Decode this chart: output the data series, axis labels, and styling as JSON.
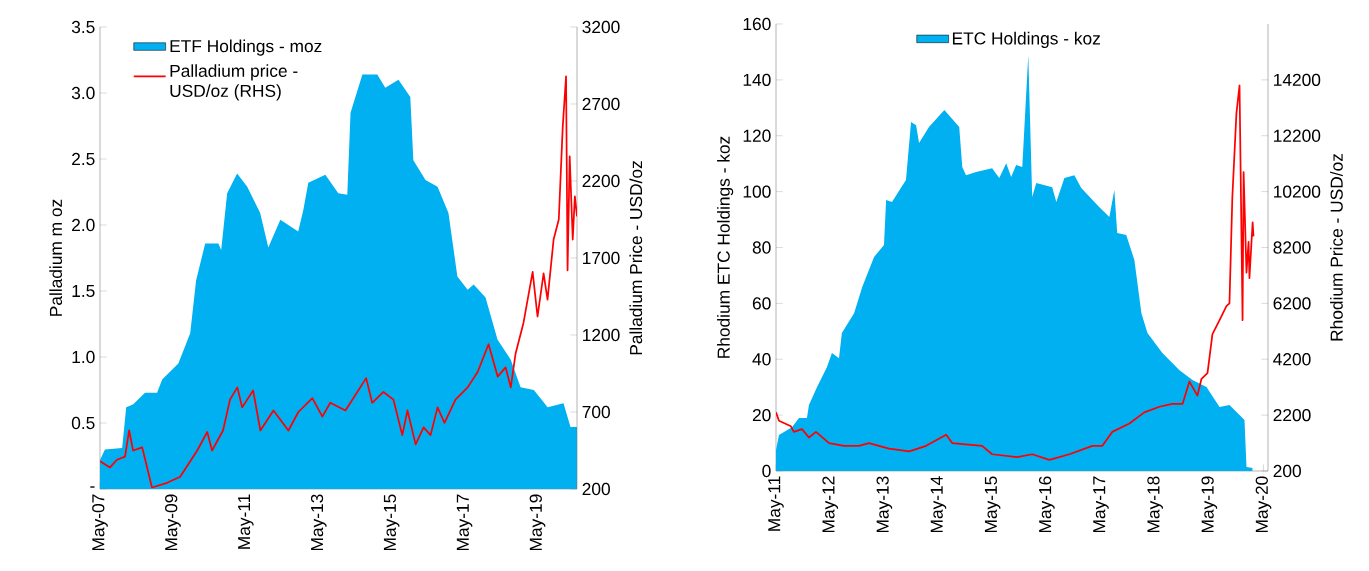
{
  "chart_data": [
    {
      "type": "area",
      "ylabel": "Palladium m oz",
      "y2label": "Palladium Price - USD/oz",
      "xlim": [
        "2007-05",
        "2020-06"
      ],
      "xticks": [
        {
          "value": "2007-05",
          "label": "May-07"
        },
        {
          "value": "2009-05",
          "label": "May-09"
        },
        {
          "value": "2011-05",
          "label": "May-11"
        },
        {
          "value": "2013-05",
          "label": "May-13"
        },
        {
          "value": "2015-05",
          "label": "May-15"
        },
        {
          "value": "2017-05",
          "label": "May-17"
        },
        {
          "value": "2019-05",
          "label": "May-19"
        }
      ],
      "ylim": [
        0,
        3.5
      ],
      "yticks": [
        {
          "value": 0,
          "label": "-"
        },
        0.5,
        {
          "value": 1,
          "label": "1.0"
        },
        1.5,
        {
          "value": 2,
          "label": "2.0"
        },
        2.5,
        {
          "value": 3,
          "label": "3.0"
        },
        3.5
      ],
      "y2lim": [
        200,
        3200
      ],
      "y2ticks": [
        200,
        700,
        1200,
        1700,
        2200,
        2700,
        3200
      ],
      "legend": "top left",
      "series": [
        {
          "name": "ETF Holdings - moz",
          "color": "#00b0f0",
          "x": [
            "2007-05-01",
            "2007-06-20",
            "2007-12-10",
            "2008-01-20",
            "2008-03-27",
            "2008-07-26",
            "2008-11-25",
            "2009-01-15",
            "2009-06-25",
            "2009-10-22",
            "2009-12-20",
            "2010-03-20",
            "2010-07-30",
            "2010-08-28",
            "2010-10-27",
            "2011-02-05",
            "2011-05-15",
            "2011-09-23",
            "2011-12-13",
            "2012-04-12",
            "2012-10-08",
            "2012-11-28",
            "2013-01-18",
            "2013-07-06",
            "2013-11-14",
            "2014-02-13",
            "2014-03-15",
            "2014-07-12",
            "2014-12-09",
            "2015-02-28",
            "2015-07-08",
            "2015-11-05",
            "2015-12-05",
            "2016-04-05",
            "2016-08-04",
            "2016-11-22",
            "2017-02-20",
            "2017-06-01",
            "2017-07-31",
            "2017-11-28",
            "2018-03-27",
            "2018-08-07",
            "2018-11-14",
            "2019-03-25",
            "2019-08-11",
            "2020-01-18",
            "2020-03-27",
            "2020-06-01"
          ],
          "values": [
            0.22,
            0.3,
            0.31,
            0.62,
            0.64,
            0.73,
            0.73,
            0.83,
            0.95,
            1.18,
            1.58,
            1.86,
            1.86,
            1.81,
            2.24,
            2.39,
            2.29,
            2.09,
            1.83,
            2.04,
            1.95,
            2.11,
            2.32,
            2.38,
            2.24,
            2.23,
            2.85,
            3.14,
            3.14,
            3.04,
            3.1,
            2.97,
            2.49,
            2.34,
            2.29,
            2.09,
            1.61,
            1.51,
            1.55,
            1.45,
            1.13,
            0.98,
            0.77,
            0.75,
            0.62,
            0.65,
            0.47,
            0.47
          ]
        },
        {
          "type": "line",
          "axis": "y2",
          "name": "Palladium price - USD/oz (RHS)",
          "color": "#ff0000",
          "x": [
            "2007-05-01",
            "2007-08-10",
            "2007-10-19",
            "2008-01-08",
            "2008-02-19",
            "2008-03-28",
            "2008-06-28",
            "2008-10-04",
            "2009-03-04",
            "2009-07-13",
            "2010-01-01",
            "2010-04-10",
            "2010-05-28",
            "2010-09-16",
            "2010-11-25",
            "2011-02-07",
            "2011-03-25",
            "2011-07-13",
            "2011-09-25",
            "2012-02-04",
            "2012-07-01",
            "2012-10-10",
            "2013-02-28",
            "2013-06-07",
            "2013-08-25",
            "2014-01-25",
            "2014-08-19",
            "2014-10-19",
            "2015-02-10",
            "2015-05-19",
            "2015-08-16",
            "2015-10-07",
            "2015-12-28",
            "2016-03-16",
            "2016-05-25",
            "2016-08-04",
            "2016-10-13",
            "2017-02-01",
            "2017-06-01",
            "2017-09-10",
            "2017-12-28",
            "2018-03-28",
            "2018-06-16",
            "2018-08-07",
            "2018-09-25",
            "2018-12-13",
            "2019-03-13",
            "2019-05-01",
            "2019-07-01",
            "2019-08-10",
            "2019-10-10",
            "2019-12-01",
            "2020-01-10",
            "2020-02-13",
            "2020-02-28",
            "2020-03-19",
            "2020-04-19",
            "2020-05-10",
            "2020-06-01"
          ],
          "values": [
            380,
            340,
            390,
            410,
            580,
            450,
            470,
            210,
            240,
            280,
            450,
            570,
            450,
            580,
            780,
            860,
            730,
            840,
            580,
            710,
            580,
            700,
            790,
            670,
            760,
            710,
            920,
            760,
            830,
            780,
            550,
            710,
            490,
            600,
            550,
            730,
            630,
            780,
            860,
            960,
            1140,
            930,
            990,
            860,
            1080,
            1280,
            1610,
            1320,
            1600,
            1430,
            1820,
            1950,
            2550,
            2880,
            1620,
            2360,
            1820,
            2100,
            1970
          ]
        }
      ]
    },
    {
      "type": "area",
      "ylabel": "Rhodium ETC Holdings - koz",
      "y2label": "Rhodium Price - USD/oz",
      "xlim": [
        "2011-05",
        "2020-06"
      ],
      "xticks": [
        {
          "value": "2011-05",
          "label": "May-11"
        },
        {
          "value": "2012-05",
          "label": "May-12"
        },
        {
          "value": "2013-05",
          "label": "May-13"
        },
        {
          "value": "2014-05",
          "label": "May-14"
        },
        {
          "value": "2015-05",
          "label": "May-15"
        },
        {
          "value": "2016-05",
          "label": "May-16"
        },
        {
          "value": "2017-05",
          "label": "May-17"
        },
        {
          "value": "2018-05",
          "label": "May-18"
        },
        {
          "value": "2019-05",
          "label": "May-19"
        },
        {
          "value": "2020-05",
          "label": "May-20"
        }
      ],
      "ylim": [
        0,
        160
      ],
      "yticks": [
        0,
        20,
        40,
        60,
        80,
        100,
        120,
        140,
        160
      ],
      "y2lim": [
        200,
        16200
      ],
      "y2ticks": [
        200,
        2200,
        4200,
        6200,
        8200,
        10200,
        12200,
        14200
      ],
      "legend": "top",
      "series": [
        {
          "name": "ETC Holdings - koz",
          "color": "#00b0f0",
          "x": [
            "2011-05-01",
            "2011-05-21",
            "2011-08-17",
            "2011-10-04",
            "2011-11-27",
            "2011-12-10",
            "2012-02-04",
            "2012-04-10",
            "2012-05-13",
            "2012-06-30",
            "2012-07-19",
            "2012-10-10",
            "2012-12-04",
            "2013-02-23",
            "2013-04-29",
            "2013-05-13",
            "2013-06-22",
            "2013-09-25",
            "2013-10-29",
            "2013-12-02",
            "2013-12-22",
            "2014-02-28",
            "2014-06-10",
            "2014-09-19",
            "2014-10-09",
            "2014-11-04",
            "2015-01-11",
            "2015-04-28",
            "2015-06-15",
            "2015-08-01",
            "2015-09-04",
            "2015-10-07",
            "2015-11-18",
            "2015-12-28",
            "2016-01-24",
            "2016-02-21",
            "2016-06-07",
            "2016-07-04",
            "2016-08-28",
            "2016-11-04",
            "2016-12-20",
            "2017-04-19",
            "2017-06-27",
            "2017-07-30",
            "2017-08-19",
            "2017-10-19",
            "2017-12-13",
            "2018-01-30",
            "2018-03-10",
            "2018-06-19",
            "2018-10-13",
            "2019-01-09",
            "2019-04-12",
            "2019-07-09",
            "2019-09-15",
            "2019-12-25",
            "2020-01-08",
            "2020-02-19"
          ],
          "values": [
            7.5,
            12.9,
            15.7,
            19.0,
            19.0,
            23.6,
            30.1,
            37.2,
            42.2,
            40.4,
            49.4,
            56.5,
            65.9,
            76.6,
            80.9,
            97.0,
            96.3,
            104.2,
            124.9,
            123.8,
            117.4,
            123.1,
            129.2,
            123.1,
            108.8,
            105.9,
            107.0,
            108.4,
            104.9,
            110.2,
            105.2,
            109.5,
            108.8,
            148.9,
            98.1,
            103.1,
            101.6,
            96.3,
            104.9,
            105.9,
            101.3,
            94.5,
            90.9,
            100.6,
            85.2,
            84.5,
            75.5,
            56.5,
            49.4,
            42.2,
            36.1,
            32.6,
            30.1,
            22.9,
            23.6,
            18.3,
            1.4,
            1.1
          ]
        },
        {
          "type": "line",
          "axis": "y2",
          "color": "#ff0000",
          "x": [
            "2011-05-01",
            "2011-05-21",
            "2011-08-10",
            "2011-08-30",
            "2011-10-24",
            "2011-12-10",
            "2012-01-27",
            "2012-04-24",
            "2012-08-03",
            "2012-11-13",
            "2013-01-19",
            "2013-06-02",
            "2013-10-16",
            "2014-02-09",
            "2014-06-22",
            "2014-08-02",
            "2015-02-21",
            "2015-04-28",
            "2015-10-14",
            "2016-01-24",
            "2016-05-18",
            "2016-10-01",
            "2017-03-04",
            "2017-05-10",
            "2017-07-16",
            "2017-11-10",
            "2018-02-19",
            "2018-05-30",
            "2018-08-25",
            "2018-11-03",
            "2018-12-19",
            "2019-02-12",
            "2019-03-09",
            "2019-04-19",
            "2019-05-22",
            "2019-07-09",
            "2019-08-25",
            "2019-09-15",
            "2019-10-04",
            "2019-11-01",
            "2019-11-22",
            "2019-12-12",
            "2019-12-19",
            "2020-01-08",
            "2020-01-22",
            "2020-01-28",
            "2020-02-19",
            "2020-02-25"
          ],
          "values": [
            2300,
            2000,
            1800,
            1600,
            1700,
            1400,
            1600,
            1200,
            1100,
            1100,
            1200,
            1000,
            900,
            1100,
            1500,
            1200,
            1100,
            800,
            700,
            800,
            600,
            800,
            1100,
            1100,
            1600,
            1900,
            2300,
            2500,
            2600,
            2600,
            3400,
            2900,
            3500,
            3700,
            5100,
            5600,
            6100,
            6200,
            10000,
            13000,
            14000,
            5600,
            10900,
            7300,
            8400,
            7100,
            9100,
            8600
          ]
        }
      ]
    }
  ]
}
